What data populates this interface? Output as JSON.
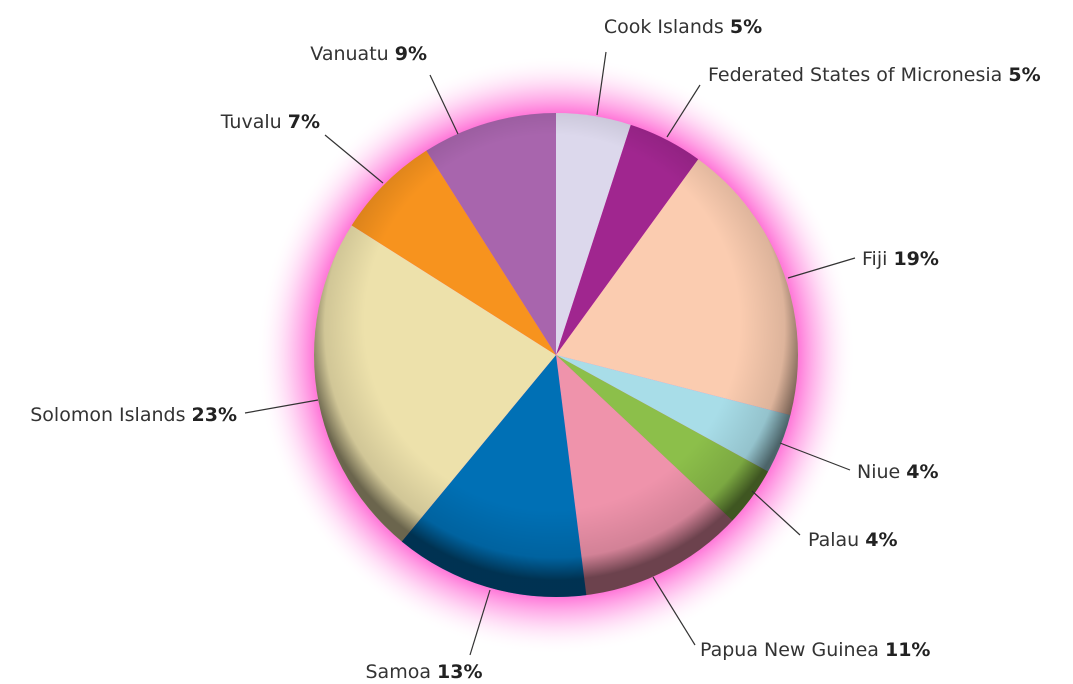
{
  "chart_data": {
    "type": "pie",
    "categories": [
      "Cook Islands",
      "Federated States of Micronesia",
      "Fiji",
      "Niue",
      "Palau",
      "Papua New Guinea",
      "Samoa",
      "Solomon Islands",
      "Tuvalu",
      "Vanuatu"
    ],
    "values": [
      5,
      5,
      19,
      4,
      4,
      11,
      13,
      23,
      7,
      9
    ],
    "value_labels": [
      "5%",
      "5%",
      "19%",
      "4%",
      "4%",
      "11%",
      "13%",
      "23%",
      "7%",
      "9%"
    ],
    "colors": [
      "#dcd8ec",
      "#a0268f",
      "#fbccb0",
      "#a8dde8",
      "#8cbf4a",
      "#ef93ab",
      "#0070b5",
      "#ede1ab",
      "#f7931e",
      "#a865ad"
    ]
  }
}
